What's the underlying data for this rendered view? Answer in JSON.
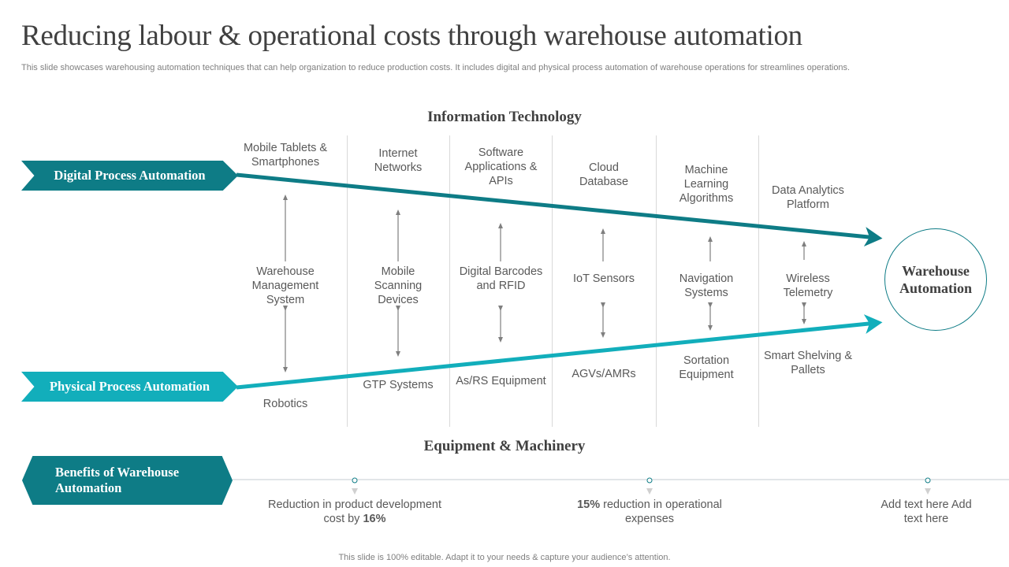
{
  "title": "Reducing labour & operational costs through warehouse automation",
  "subtitle": "This slide showcases warehousing automation techniques that can help organization to reduce production costs. It includes digital and physical process automation of warehouse operations for streamlines operations.",
  "top_heading": "Information Technology",
  "bottom_heading": "Equipment & Machinery",
  "digital_banner": "Digital Process Automation",
  "physical_banner": "Physical Process Automation",
  "target": "Warehouse Automation",
  "colors": {
    "dark_teal": "#0e7c86",
    "light_teal": "#12aebb"
  },
  "columns": [
    {
      "it": "Mobile Tablets & Smartphones",
      "mid": "Warehouse Management System",
      "equip": "Robotics"
    },
    {
      "it": "Internet Networks",
      "mid": "Mobile Scanning Devices",
      "equip": "GTP Systems"
    },
    {
      "it": "Software Applications & APIs",
      "mid": "Digital Barcodes and RFID",
      "equip": "As/RS Equipment"
    },
    {
      "it": "Cloud Database",
      "mid": "IoT Sensors",
      "equip": "AGVs/AMRs"
    },
    {
      "it": "Machine Learning Algorithms",
      "mid": "Navigation Systems",
      "equip": "Sortation Equipment"
    },
    {
      "it": "Data Analytics Platform",
      "mid": "Wireless Telemetry",
      "equip": "Smart Shelving & Pallets"
    }
  ],
  "benefits": {
    "label": "Benefits of Warehouse Automation",
    "items": [
      {
        "text": "Reduction in product development cost by ",
        "bold": "16%"
      },
      {
        "bold": "15%",
        "text": " reduction in operational expenses"
      },
      {
        "text": "Add text here Add text here"
      }
    ]
  },
  "footer": "This slide is 100% editable. Adapt it to your needs & capture your audience’s attention."
}
